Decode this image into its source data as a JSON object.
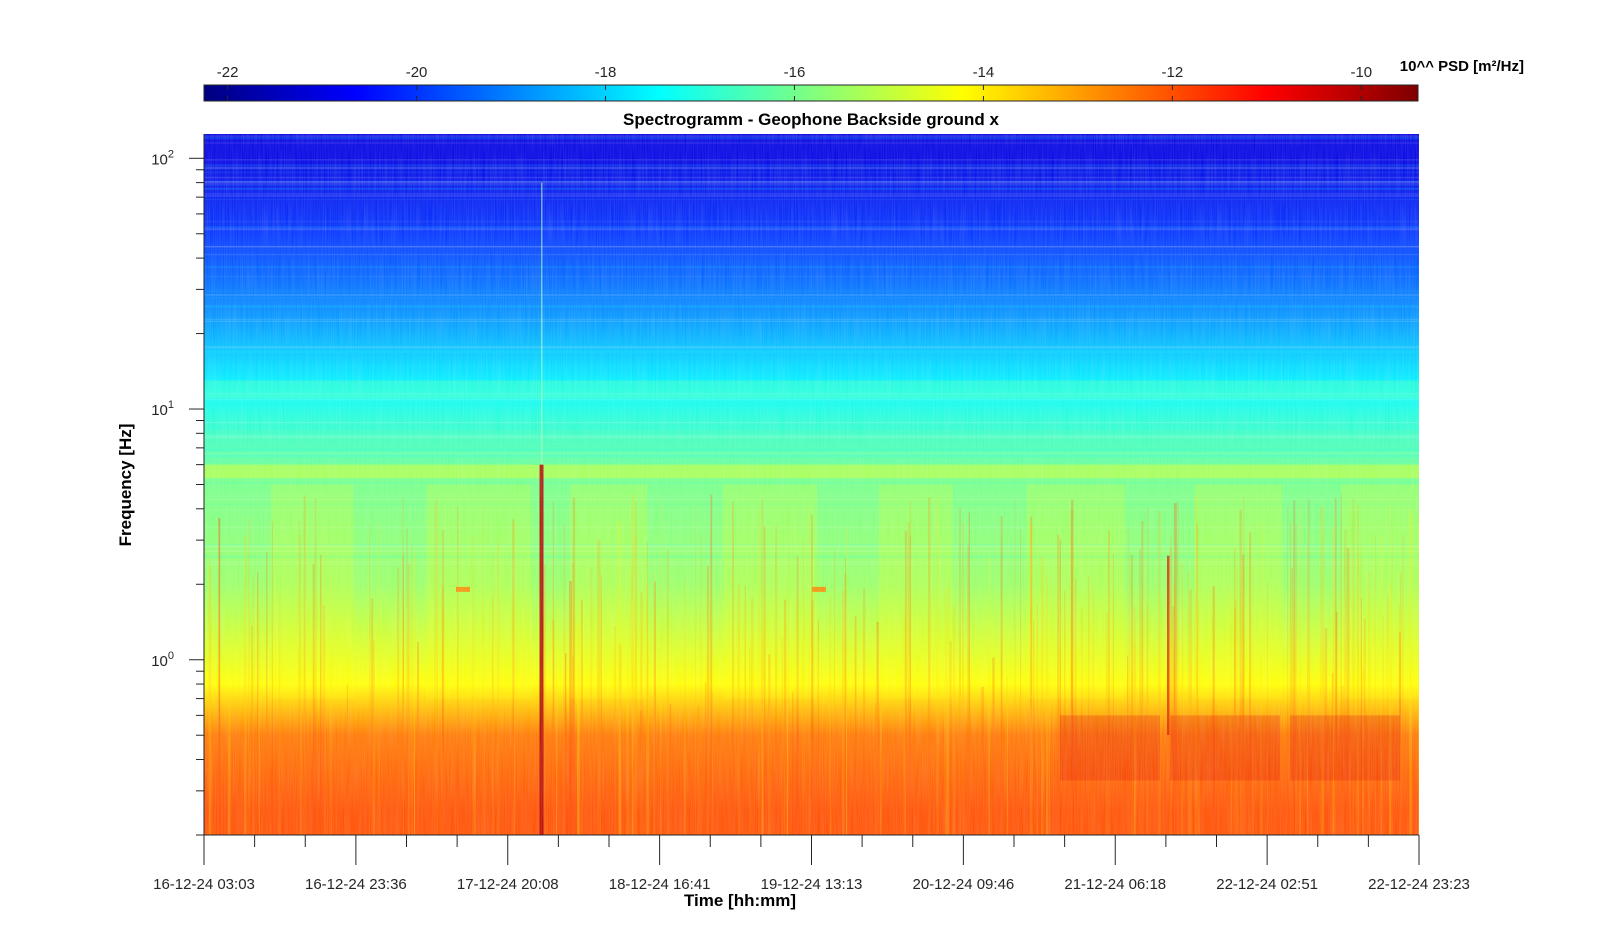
{
  "chart_data": {
    "type": "heatmap",
    "title": "Spectrogramm - Geophone Backside ground x",
    "xlabel": "Time [hh:mm]",
    "ylabel": "Frequency [Hz]",
    "y_scale": "log",
    "ylim": [
      0.2,
      125
    ],
    "y_major_ticks": [
      {
        "value": 1,
        "base": "10",
        "exp": "0"
      },
      {
        "value": 10,
        "base": "10",
        "exp": "1"
      },
      {
        "value": 100,
        "base": "10",
        "exp": "2"
      }
    ],
    "x_tick_labels": [
      "16-12-24 03:03",
      "16-12-24 23:36",
      "17-12-24 20:08",
      "18-12-24 16:41",
      "19-12-24 13:13",
      "20-12-24 09:46",
      "21-12-24 06:18",
      "22-12-24 02:51",
      "22-12-24 23:23"
    ],
    "colorbar": {
      "label": "10^^ PSD [m²/Hz]",
      "range": [
        -22.25,
        -9.4
      ],
      "ticks": [
        -22,
        -20,
        -18,
        -16,
        -14,
        -12,
        -10
      ],
      "colormap": "jet",
      "placement": "top"
    },
    "levels": [
      {
        "freq": 100,
        "psd_exp": -21.0
      },
      {
        "freq": 50,
        "psd_exp": -20.0
      },
      {
        "freq": 25,
        "psd_exp": -18.9
      },
      {
        "freq": 12,
        "psd_exp": -17.5
      },
      {
        "freq": 5.5,
        "psd_exp": -16.0
      },
      {
        "freq": 2,
        "psd_exp": -15.5
      },
      {
        "freq": 0.8,
        "psd_exp": -14.2
      },
      {
        "freq": 0.5,
        "psd_exp": -12.5
      },
      {
        "freq": 0.25,
        "psd_exp": -12.0
      }
    ]
  }
}
